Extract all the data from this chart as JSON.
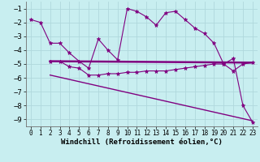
{
  "background_color": "#c8eef0",
  "line_color": "#800080",
  "grid_color": "#b0d8dc",
  "xlabel": "Windchill (Refroidissement éolien,°C)",
  "xlabel_fontsize": 6.5,
  "xtick_fontsize": 5.5,
  "ytick_fontsize": 6.5,
  "xlim": [
    -0.5,
    23.5
  ],
  "ylim": [
    -9.5,
    -0.5
  ],
  "yticks": [
    -9,
    -8,
    -7,
    -6,
    -5,
    -4,
    -3,
    -2,
    -1
  ],
  "xticks": [
    0,
    1,
    2,
    3,
    4,
    5,
    6,
    7,
    8,
    9,
    10,
    11,
    12,
    13,
    14,
    15,
    16,
    17,
    18,
    19,
    20,
    21,
    22,
    23
  ],
  "line1_x": [
    0,
    1,
    2,
    3,
    4,
    5,
    6,
    7,
    8,
    9,
    10,
    11,
    12,
    13,
    14,
    15,
    16,
    17,
    18,
    19,
    20,
    21,
    22,
    23
  ],
  "line1_y": [
    -1.8,
    -2.0,
    -3.5,
    -3.5,
    -4.2,
    -4.8,
    -5.3,
    -3.2,
    -4.0,
    -4.7,
    -1.0,
    -1.2,
    -1.6,
    -2.2,
    -1.3,
    -1.2,
    -1.8,
    -2.4,
    -2.8,
    -3.5,
    -5.0,
    -4.6,
    -8.0,
    -9.2
  ],
  "line2_x": [
    2,
    3,
    4,
    5,
    6,
    7,
    8,
    9,
    10,
    11,
    12,
    13,
    14,
    15,
    16,
    17,
    18,
    19,
    20,
    21,
    22,
    23
  ],
  "line2_y": [
    -4.8,
    -4.8,
    -5.2,
    -5.3,
    -5.8,
    -5.8,
    -5.7,
    -5.7,
    -5.6,
    -5.6,
    -5.5,
    -5.5,
    -5.5,
    -5.4,
    -5.3,
    -5.2,
    -5.1,
    -5.0,
    -5.0,
    -5.5,
    -5.0,
    -4.9
  ],
  "line3_x": [
    2,
    23
  ],
  "line3_y": [
    -4.8,
    -4.9
  ],
  "line4_x": [
    2,
    23
  ],
  "line4_y": [
    -5.8,
    -9.1
  ]
}
